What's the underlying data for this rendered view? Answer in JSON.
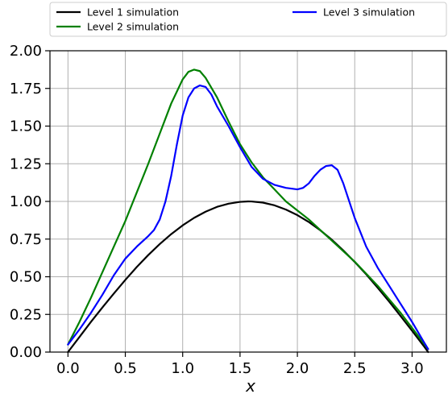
{
  "chart_data": {
    "type": "line",
    "title": "",
    "xlabel": "x",
    "ylabel": "",
    "xlim": [
      -0.157,
      3.299
    ],
    "ylim": [
      0.0,
      2.0
    ],
    "x_ticks": [
      0.0,
      0.5,
      1.0,
      1.5,
      2.0,
      2.5,
      3.0
    ],
    "x_tick_labels": [
      "0.0",
      "0.5",
      "1.0",
      "1.5",
      "2.0",
      "2.5",
      "3.0"
    ],
    "y_ticks": [
      0.0,
      0.25,
      0.5,
      0.75,
      1.0,
      1.25,
      1.5,
      1.75,
      2.0
    ],
    "y_tick_labels": [
      "0.00",
      "0.25",
      "0.50",
      "0.75",
      "1.00",
      "1.25",
      "1.50",
      "1.75",
      "2.00"
    ],
    "grid": true,
    "legend_position": "top, above plot",
    "series": [
      {
        "name": "Level 1 simulation",
        "color": "#000000",
        "x": [
          0.0,
          0.1,
          0.2,
          0.3,
          0.4,
          0.5,
          0.6,
          0.7,
          0.8,
          0.9,
          1.0,
          1.1,
          1.2,
          1.3,
          1.4,
          1.5,
          1.57,
          1.6,
          1.7,
          1.8,
          1.9,
          2.0,
          2.1,
          2.2,
          2.3,
          2.4,
          2.5,
          2.6,
          2.7,
          2.8,
          2.9,
          3.0,
          3.1,
          3.14
        ],
        "y": [
          0.0,
          0.1,
          0.2,
          0.296,
          0.389,
          0.479,
          0.565,
          0.644,
          0.717,
          0.783,
          0.841,
          0.891,
          0.932,
          0.964,
          0.985,
          0.997,
          1.0,
          0.9996,
          0.992,
          0.974,
          0.946,
          0.909,
          0.863,
          0.808,
          0.746,
          0.675,
          0.598,
          0.516,
          0.427,
          0.335,
          0.239,
          0.141,
          0.042,
          0.0
        ]
      },
      {
        "name": "Level 2 simulation",
        "color": "#008000",
        "x": [
          0.0,
          0.1,
          0.2,
          0.3,
          0.4,
          0.5,
          0.6,
          0.7,
          0.8,
          0.9,
          1.0,
          1.05,
          1.1,
          1.15,
          1.2,
          1.3,
          1.4,
          1.5,
          1.6,
          1.7,
          1.8,
          1.9,
          2.0,
          2.1,
          2.2,
          2.3,
          2.4,
          2.5,
          2.6,
          2.7,
          2.8,
          2.9,
          3.0,
          3.1,
          3.14
        ],
        "y": [
          0.05,
          0.2,
          0.36,
          0.53,
          0.7,
          0.87,
          1.06,
          1.25,
          1.45,
          1.65,
          1.81,
          1.86,
          1.875,
          1.865,
          1.82,
          1.69,
          1.53,
          1.38,
          1.26,
          1.16,
          1.08,
          1.0,
          0.94,
          0.88,
          0.81,
          0.74,
          0.67,
          0.6,
          0.52,
          0.44,
          0.35,
          0.26,
          0.16,
          0.06,
          0.02
        ]
      },
      {
        "name": "Level 3 simulation",
        "color": "#0000ff",
        "x": [
          0.0,
          0.1,
          0.2,
          0.3,
          0.4,
          0.5,
          0.6,
          0.7,
          0.75,
          0.8,
          0.85,
          0.9,
          0.95,
          1.0,
          1.05,
          1.1,
          1.15,
          1.2,
          1.25,
          1.3,
          1.4,
          1.5,
          1.6,
          1.7,
          1.8,
          1.9,
          2.0,
          2.05,
          2.1,
          2.15,
          2.2,
          2.25,
          2.3,
          2.35,
          2.4,
          2.5,
          2.6,
          2.7,
          2.8,
          2.9,
          3.0,
          3.1,
          3.14
        ],
        "y": [
          0.05,
          0.15,
          0.26,
          0.38,
          0.51,
          0.62,
          0.7,
          0.77,
          0.81,
          0.88,
          1.0,
          1.17,
          1.38,
          1.57,
          1.69,
          1.75,
          1.77,
          1.76,
          1.71,
          1.63,
          1.5,
          1.36,
          1.23,
          1.15,
          1.11,
          1.09,
          1.08,
          1.09,
          1.12,
          1.17,
          1.21,
          1.235,
          1.24,
          1.21,
          1.12,
          0.89,
          0.7,
          0.56,
          0.44,
          0.32,
          0.2,
          0.07,
          0.02
        ]
      }
    ]
  }
}
